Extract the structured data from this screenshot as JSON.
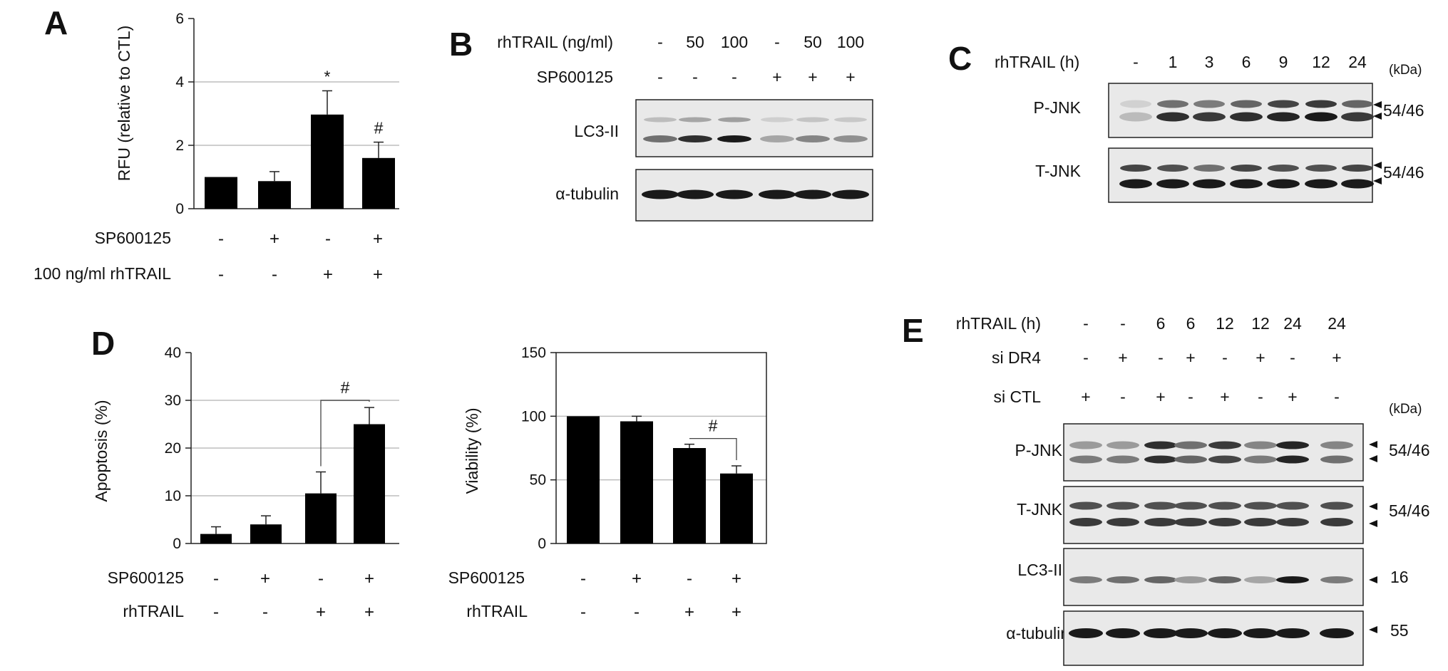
{
  "panels": {
    "A": {
      "letter": "A",
      "chart": {
        "type": "bar",
        "ylabel": "RFU (relative to CTL)",
        "ylim": [
          0,
          6
        ],
        "yticks": [
          "0",
          "2",
          "4",
          "6"
        ],
        "grid": true,
        "values": [
          1.0,
          0.87,
          2.97,
          1.6
        ],
        "errors": [
          0.0,
          0.3,
          0.75,
          0.5
        ],
        "marks": [
          "",
          "",
          "*",
          "#"
        ],
        "rows": [
          {
            "label": "SP600125",
            "signs": [
              "-",
              "+",
              "-",
              "+"
            ]
          },
          {
            "label": "100 ng/ml  rhTRAIL",
            "signs": [
              "-",
              "-",
              "+",
              "+"
            ]
          }
        ]
      }
    },
    "B": {
      "letter": "B",
      "rows": [
        {
          "label": "rhTRAIL (ng/ml)",
          "values": [
            "-",
            "50",
            "100",
            "-",
            "50",
            "100"
          ]
        },
        {
          "label": "SP600125",
          "values": [
            "-",
            "-",
            "-",
            "+",
            "+",
            "+"
          ]
        }
      ],
      "blots": [
        {
          "label": "LC3-II",
          "intensity": [
            0.55,
            0.85,
            0.95,
            0.3,
            0.45,
            0.4
          ]
        },
        {
          "label": "α-tubulin",
          "intensity": [
            0.95,
            0.95,
            0.95,
            0.95,
            0.95,
            0.95
          ]
        }
      ]
    },
    "C": {
      "letter": "C",
      "row_label": "rhTRAIL (h)",
      "times": [
        "-",
        "1",
        "3",
        "6",
        "9",
        "12",
        "24"
      ],
      "kda": "(kDa)",
      "blots": [
        {
          "label": "P-JNK",
          "marker": "54/46"
        },
        {
          "label": "T-JNK",
          "marker": "54/46"
        }
      ]
    },
    "D": {
      "letter": "D",
      "charts": [
        {
          "type": "bar",
          "ylabel": "Apoptosis (%)",
          "ylim": [
            0,
            40
          ],
          "yticks": [
            "0",
            "10",
            "20",
            "30",
            "40"
          ],
          "grid": true,
          "values": [
            2,
            4,
            10.5,
            25
          ],
          "errors": [
            1.5,
            1.8,
            4.5,
            3.5
          ],
          "bracket": "#",
          "rows": [
            {
              "label": "SP600125",
              "signs": [
                "-",
                "+",
                "-",
                "+"
              ]
            },
            {
              "label": "rhTRAIL",
              "signs": [
                "-",
                "-",
                "+",
                "+"
              ]
            }
          ]
        },
        {
          "type": "bar",
          "ylabel": "Viability (%)",
          "ylim": [
            0,
            150
          ],
          "yticks": [
            "0",
            "50",
            "100",
            "150"
          ],
          "grid": true,
          "values": [
            100,
            96,
            75,
            55
          ],
          "errors": [
            0,
            4,
            3,
            6
          ],
          "bracket": "#",
          "rows": [
            {
              "label": "SP600125",
              "signs": [
                "-",
                "+",
                "-",
                "+"
              ]
            },
            {
              "label": "rhTRAIL",
              "signs": [
                "-",
                "-",
                "+",
                "+"
              ]
            }
          ]
        }
      ]
    },
    "E": {
      "letter": "E",
      "rows": [
        {
          "label": "rhTRAIL (h)",
          "values": [
            "-",
            "-",
            "6",
            "6",
            "12",
            "12",
            "24",
            "24"
          ]
        },
        {
          "label": "si DR4",
          "values": [
            "-",
            "+",
            "-",
            "+",
            "-",
            "+",
            "-",
            "+"
          ]
        },
        {
          "label": "si CTL",
          "values": [
            "+",
            "-",
            "+",
            "-",
            "+",
            "-",
            "+",
            "-"
          ]
        }
      ],
      "kda": "(kDa)",
      "blots": [
        {
          "label": "P-JNK",
          "marker": "54/46"
        },
        {
          "label": "T-JNK",
          "marker": "54/46"
        },
        {
          "label": "LC3-II",
          "marker": "16"
        },
        {
          "label": "α-tubulin",
          "marker": "55"
        }
      ]
    }
  },
  "colors": {
    "bar": "#000000",
    "grid": "#bdbdbd",
    "blot_bg": "#e9e9e9",
    "band": "#1a1a1a"
  }
}
